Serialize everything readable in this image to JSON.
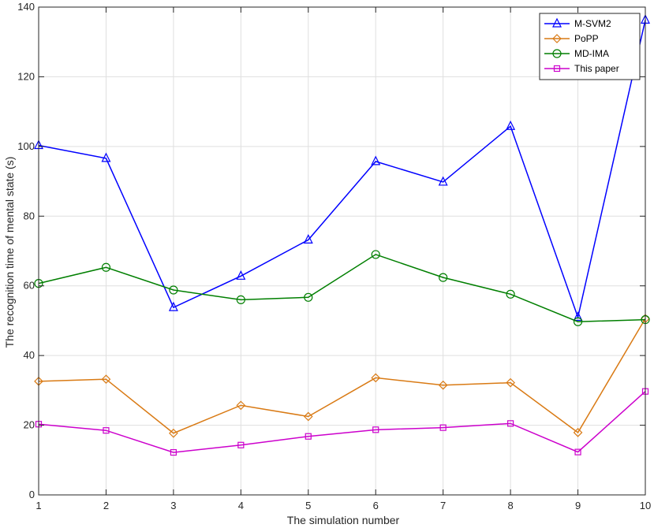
{
  "chart_data": {
    "type": "line",
    "xlabel": "The simulation number",
    "ylabel": "The recognition time of mental state (s)",
    "x": [
      1,
      2,
      3,
      4,
      5,
      6,
      7,
      8,
      9,
      10
    ],
    "xlim": [
      1,
      10
    ],
    "ylim": [
      0,
      140
    ],
    "xticks": [
      1,
      2,
      3,
      4,
      5,
      6,
      7,
      8,
      9,
      10
    ],
    "yticks": [
      0,
      20,
      40,
      60,
      80,
      100,
      120,
      140
    ],
    "grid": true,
    "legend_position": "top-right",
    "series": [
      {
        "name": "M-SVM2",
        "color": "#0000ff",
        "marker": "triangle",
        "values": [
          100.3,
          96.6,
          53.8,
          62.8,
          73.2,
          95.7,
          89.8,
          105.8,
          51.0,
          136.3
        ]
      },
      {
        "name": "PoPP",
        "color": "#d97a14",
        "marker": "diamond",
        "values": [
          32.6,
          33.2,
          17.7,
          25.7,
          22.5,
          33.6,
          31.5,
          32.2,
          17.9,
          50.6
        ]
      },
      {
        "name": "MD-IMA",
        "color": "#007f00",
        "marker": "circle",
        "values": [
          60.7,
          65.3,
          58.8,
          56.0,
          56.7,
          69.0,
          62.4,
          57.6,
          49.7,
          50.3
        ]
      },
      {
        "name": "This paper",
        "color": "#cc00cc",
        "marker": "square",
        "values": [
          20.3,
          18.5,
          12.2,
          14.3,
          16.8,
          18.7,
          19.3,
          20.5,
          12.3,
          29.7
        ]
      }
    ]
  }
}
